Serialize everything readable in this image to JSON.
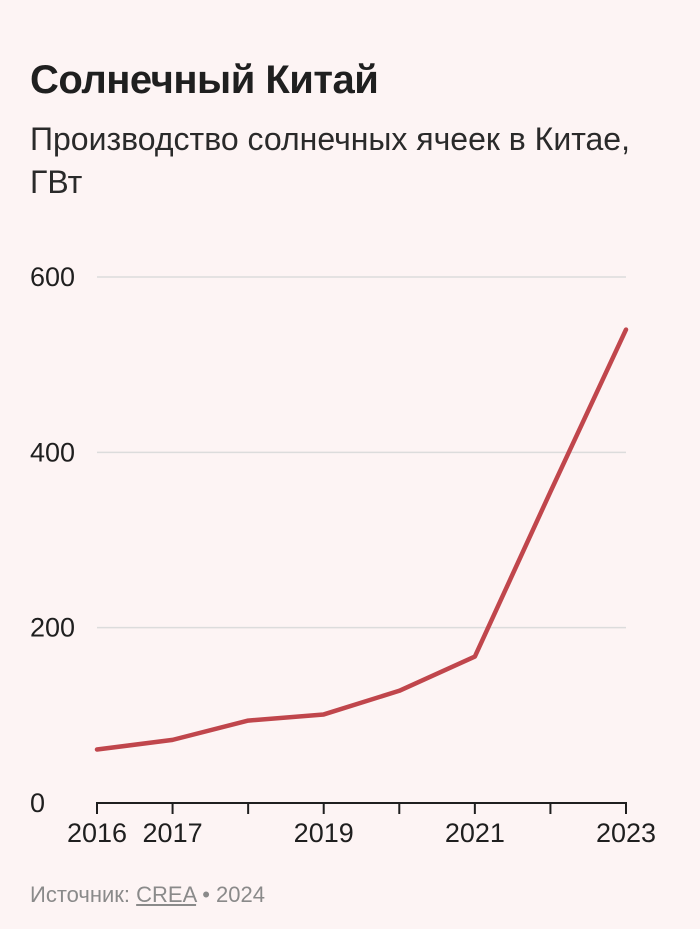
{
  "title": "Солнечный Китай",
  "subtitle": "Производство солнечных ячеек в Китае, ГВт",
  "source": {
    "label": "Источник:",
    "link_text": "CREA",
    "separator": "•",
    "year": "2024"
  },
  "chart_data": {
    "type": "line",
    "title": "Солнечный Китай",
    "subtitle": "Производство солнечных ячеек в Китае, ГВт",
    "xlabel": "",
    "ylabel": "",
    "x": [
      2016,
      2017,
      2018,
      2019,
      2020,
      2021,
      2022,
      2023
    ],
    "values": [
      61,
      72,
      94,
      101,
      128,
      167,
      355,
      540
    ],
    "xticks_labeled": [
      "2016",
      "2017",
      "2019",
      "2021",
      "2023"
    ],
    "xlim": [
      2016,
      2023
    ],
    "yticks": [
      0,
      200,
      400,
      600
    ],
    "ylim": [
      0,
      600
    ],
    "grid": "horizontal",
    "colors": {
      "line": "#c0464c",
      "grid": "#dcdcdc",
      "axis": "#1f1f1f",
      "background": "#fdf4f4"
    }
  }
}
